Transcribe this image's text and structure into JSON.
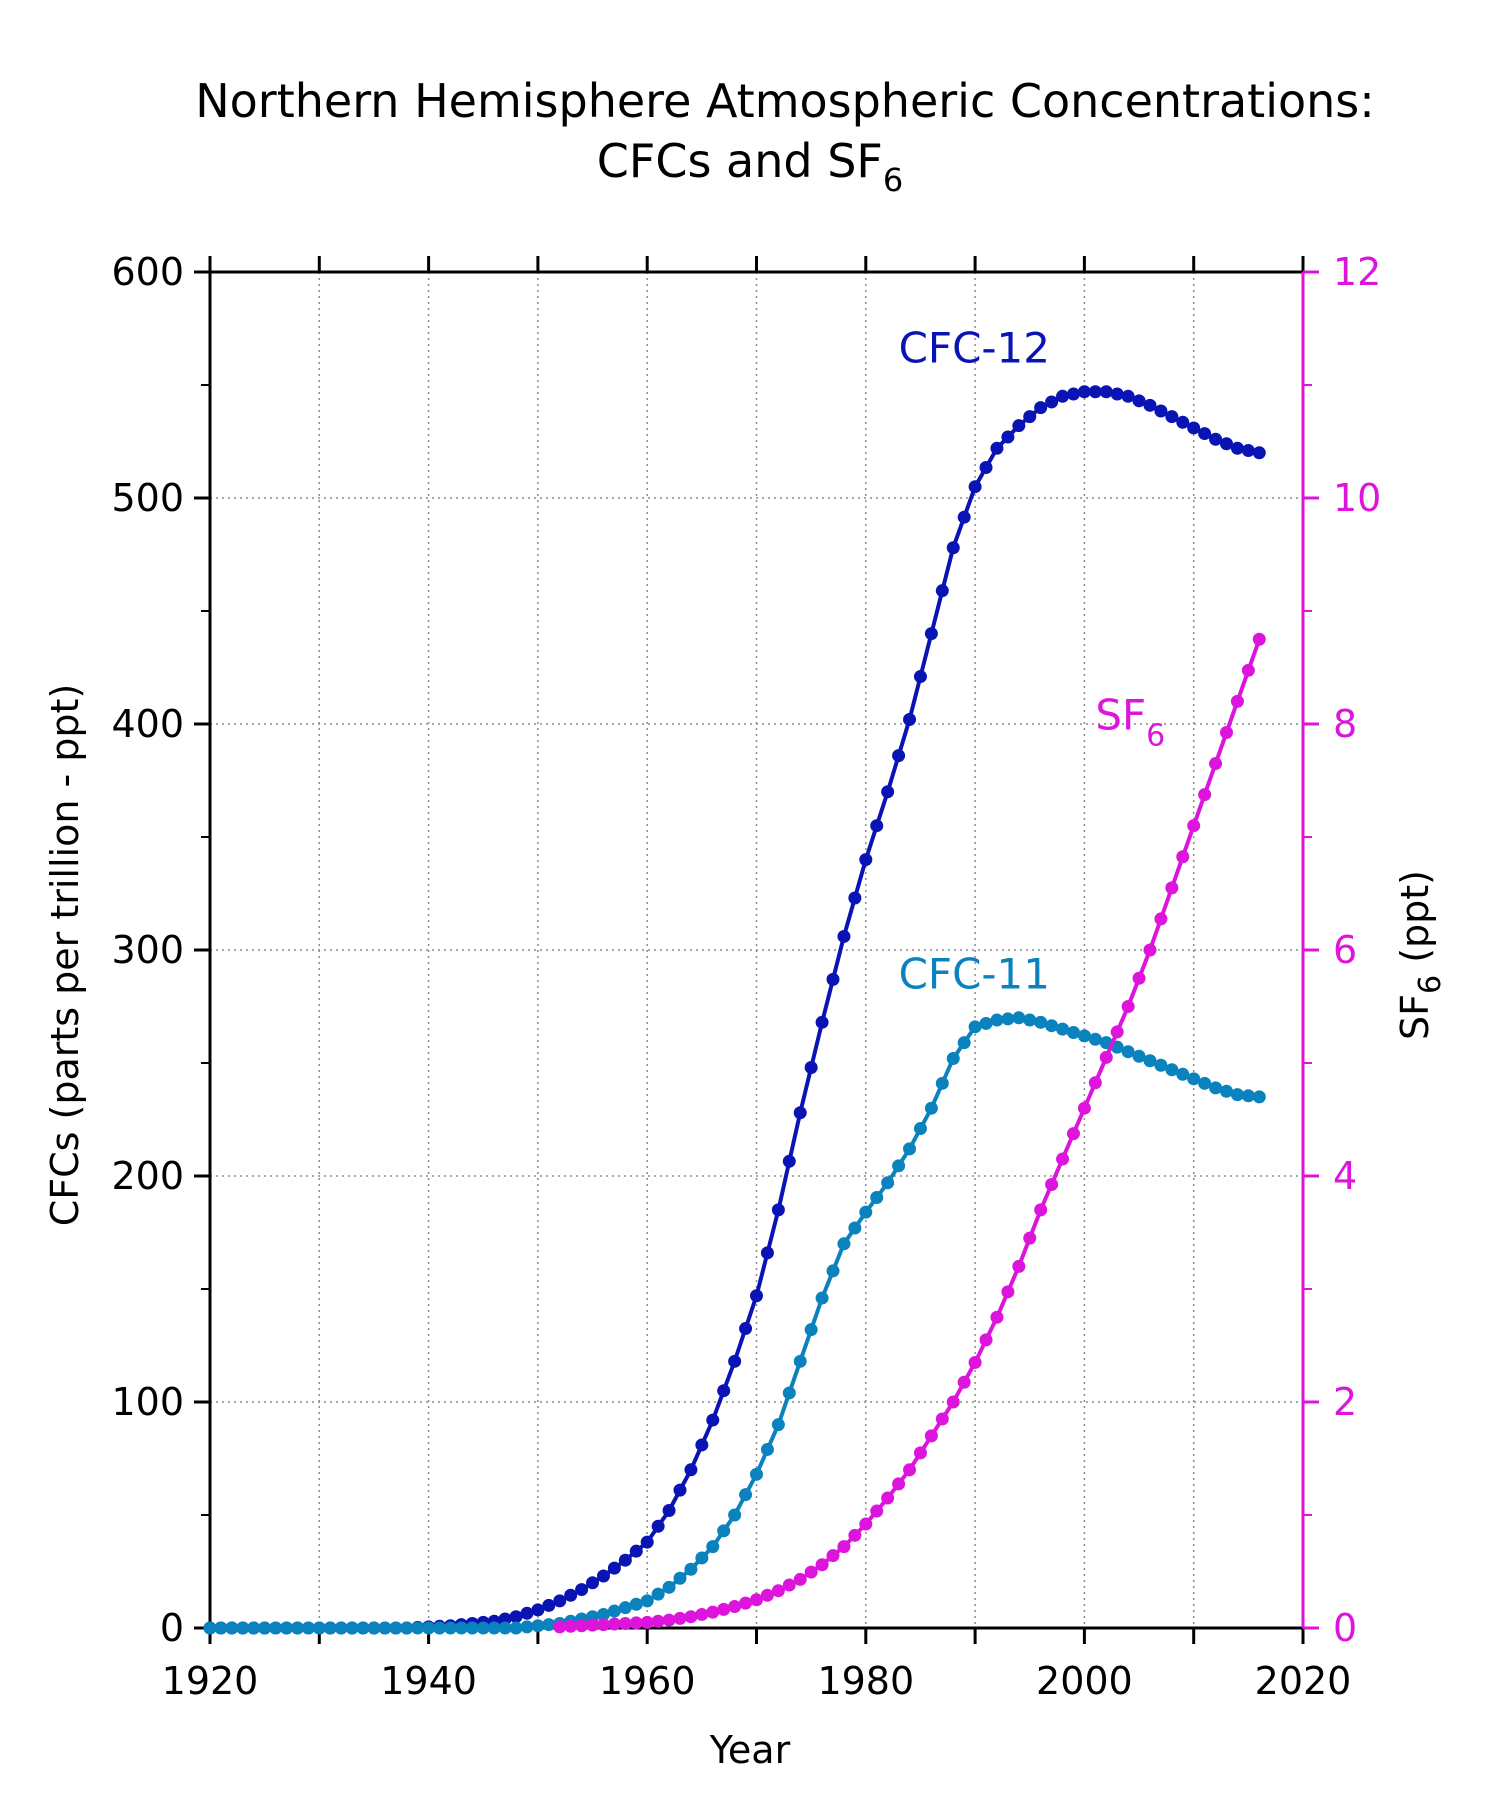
{
  "chart_data": {
    "type": "line",
    "title_line1": "Northern Hemisphere Atmospheric Concentrations:",
    "title_line2_main": "CFCs and SF",
    "title_line2_sub": "6",
    "xlabel": "Year",
    "ylabel_left": "CFCs (parts per trillion - ppt)",
    "ylabel_right_main": "SF",
    "ylabel_right_sub": "6",
    "ylabel_right_rest": " (ppt)",
    "xlim": [
      1920,
      2020
    ],
    "ylim_left": [
      0,
      600
    ],
    "ylim_right": [
      0,
      12
    ],
    "x_ticks": [
      "1920",
      "1940",
      "1960",
      "1980",
      "2000",
      "2020"
    ],
    "y_ticks_left": [
      "0",
      "100",
      "200",
      "300",
      "400",
      "500",
      "600"
    ],
    "y_ticks_right": [
      "0",
      "2",
      "4",
      "6",
      "8",
      "10",
      "12"
    ],
    "grid": true,
    "series": [
      {
        "name": "CFC-12",
        "label_main": "CFC-12",
        "label_sub": "",
        "axis": "left",
        "color": "#0a14b4",
        "x": [
          1920,
          1922,
          1924,
          1926,
          1928,
          1930,
          1932,
          1934,
          1936,
          1938,
          1940,
          1942,
          1944,
          1946,
          1948,
          1950,
          1952,
          1954,
          1956,
          1958,
          1960,
          1962,
          1964,
          1966,
          1968,
          1970,
          1972,
          1974,
          1976,
          1978,
          1980,
          1982,
          1984,
          1986,
          1988,
          1990,
          1992,
          1994,
          1996,
          1998,
          2000,
          2002,
          2004,
          2006,
          2008,
          2010,
          2012,
          2014,
          2016
        ],
        "y": [
          0,
          0,
          0,
          0,
          0,
          0,
          0,
          0,
          0,
          0,
          0.5,
          1,
          2,
          3,
          5,
          8,
          12,
          17,
          23,
          30,
          38,
          52,
          70,
          92,
          118,
          147,
          185,
          228,
          268,
          306,
          340,
          370,
          402,
          440,
          478,
          505,
          522,
          532,
          540,
          545,
          547,
          547,
          545,
          541,
          536,
          531,
          526,
          522,
          520
        ]
      },
      {
        "name": "CFC-11",
        "label_main": "CFC-11",
        "label_sub": "",
        "axis": "left",
        "color": "#0a82be",
        "x": [
          1920,
          1922,
          1924,
          1926,
          1928,
          1930,
          1932,
          1934,
          1936,
          1938,
          1940,
          1942,
          1944,
          1946,
          1948,
          1950,
          1952,
          1954,
          1956,
          1958,
          1960,
          1962,
          1964,
          1966,
          1968,
          1970,
          1972,
          1974,
          1976,
          1978,
          1980,
          1982,
          1984,
          1986,
          1988,
          1990,
          1992,
          1994,
          1996,
          1998,
          2000,
          2002,
          2004,
          2006,
          2008,
          2010,
          2012,
          2014,
          2016
        ],
        "y": [
          0,
          0,
          0,
          0,
          0,
          0,
          0,
          0,
          0,
          0,
          0,
          0,
          0,
          0,
          0,
          1,
          2,
          4,
          6,
          9,
          12,
          18,
          26,
          36,
          50,
          68,
          90,
          118,
          146,
          170,
          184,
          197,
          212,
          230,
          252,
          266,
          269,
          270,
          268,
          265,
          262,
          259,
          255,
          251,
          247,
          243,
          239,
          236,
          235
        ]
      },
      {
        "name": "SF6",
        "label_main": "SF",
        "label_sub": "6",
        "axis": "right",
        "color": "#dc14dc",
        "x": [
          1952,
          1954,
          1956,
          1958,
          1960,
          1962,
          1964,
          1966,
          1968,
          1970,
          1972,
          1974,
          1976,
          1978,
          1980,
          1982,
          1984,
          1986,
          1988,
          1990,
          1992,
          1994,
          1996,
          1998,
          2000,
          2002,
          2004,
          2006,
          2008,
          2010,
          2012,
          2014,
          2016
        ],
        "y": [
          0.01,
          0.02,
          0.03,
          0.04,
          0.05,
          0.07,
          0.1,
          0.14,
          0.19,
          0.25,
          0.33,
          0.43,
          0.56,
          0.72,
          0.92,
          1.15,
          1.4,
          1.7,
          2.0,
          2.35,
          2.75,
          3.2,
          3.7,
          4.15,
          4.6,
          5.05,
          5.5,
          6.0,
          6.55,
          7.1,
          7.65,
          8.2,
          8.75
        ]
      }
    ]
  }
}
